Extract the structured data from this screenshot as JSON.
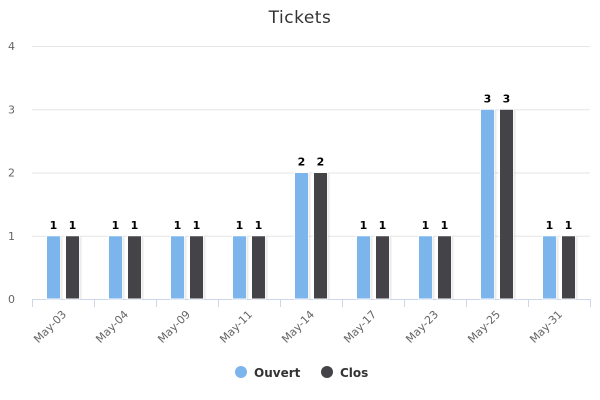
{
  "chart_data": {
    "type": "bar",
    "title": "Tickets",
    "xlabel": "",
    "ylabel": "",
    "categories": [
      "May-03",
      "May-04",
      "May-09",
      "May-11",
      "May-14",
      "May-17",
      "May-23",
      "May-25",
      "May-31"
    ],
    "series": [
      {
        "name": "Ouvert",
        "color": "#7cb5ec",
        "values": [
          1,
          1,
          1,
          1,
          2,
          1,
          1,
          3,
          1
        ]
      },
      {
        "name": "Clos",
        "color": "#434348",
        "values": [
          1,
          1,
          1,
          1,
          2,
          1,
          1,
          3,
          1
        ]
      }
    ],
    "ylim": [
      0,
      4
    ],
    "yticks": [
      0,
      1,
      2,
      3,
      4
    ],
    "grid": true,
    "data_labels": true,
    "legend": "bottom-center"
  }
}
